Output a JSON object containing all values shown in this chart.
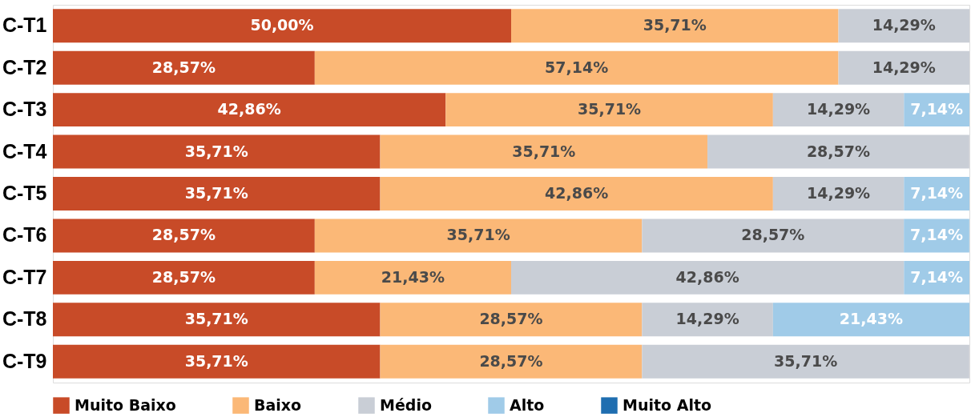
{
  "chart_data": {
    "type": "bar",
    "orientation": "horizontal",
    "stacked": true,
    "categories": [
      "C-T1",
      "C-T2",
      "C-T3",
      "C-T4",
      "C-T5",
      "C-T6",
      "C-T7",
      "C-T8",
      "C-T9"
    ],
    "xlim": [
      0,
      100
    ],
    "tick_labels": "y",
    "grid": false,
    "legend": "bottom",
    "series": [
      {
        "name": "Muito Baixo",
        "color": "#c84b28",
        "values": [
          50.0,
          28.57,
          42.86,
          35.71,
          35.71,
          28.57,
          28.57,
          35.71,
          35.71
        ],
        "value_labels": [
          "50,00%",
          "28,57%",
          "42,86%",
          "35,71%",
          "35,71%",
          "28,57%",
          "28,57%",
          "35,71%",
          "35,71%"
        ]
      },
      {
        "name": "Baixo",
        "color": "#fbb877",
        "values": [
          35.71,
          57.14,
          35.71,
          35.71,
          42.86,
          35.71,
          21.43,
          28.57,
          28.57
        ],
        "value_labels": [
          "35,71%",
          "57,14%",
          "35,71%",
          "35,71%",
          "42,86%",
          "35,71%",
          "21,43%",
          "28,57%",
          "28,57%"
        ]
      },
      {
        "name": "Médio",
        "color": "#c9ced6",
        "values": [
          14.29,
          14.29,
          14.29,
          28.57,
          14.29,
          28.57,
          42.86,
          14.29,
          35.71
        ],
        "value_labels": [
          "14,29%",
          "14,29%",
          "14,29%",
          "28,57%",
          "14,29%",
          "28,57%",
          "42,86%",
          "14,29%",
          "35,71%"
        ]
      },
      {
        "name": "Alto",
        "color": "#a0cbe8",
        "values": [
          null,
          null,
          7.14,
          null,
          7.14,
          7.14,
          7.14,
          21.43,
          null
        ],
        "value_labels": [
          null,
          null,
          "7,14%",
          null,
          "7,14%",
          "7,14%",
          "7,14%",
          "21,43%",
          null
        ]
      },
      {
        "name": "Muito Alto",
        "color": "#1f6eb0",
        "values": [
          null,
          null,
          null,
          null,
          null,
          null,
          null,
          null,
          null
        ]
      }
    ]
  }
}
